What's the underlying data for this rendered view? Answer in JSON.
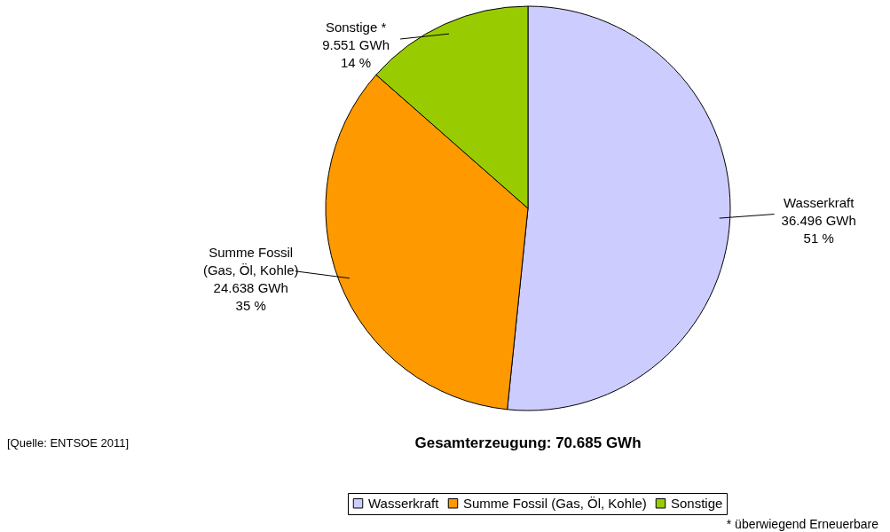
{
  "chart_data": {
    "type": "pie",
    "title": "Gesamterzeugung: 70.685 GWh",
    "categories": [
      "Wasserkraft",
      "Summe Fossil (Gas, Öl, Kohle)",
      "Sonstige"
    ],
    "values": [
      36496,
      24638,
      9551
    ],
    "colors": [
      "#ccccff",
      "#ff9900",
      "#99cc00"
    ],
    "value_labels": [
      "Wasserkraft\n36.496 GWh\n51 %",
      "Summe Fossil\n(Gas, Öl, Kohle)\n24.638 GWh\n35 %",
      "Sonstige *\n9.551 GWh\n14 %"
    ],
    "annotations": [
      "[Quelle: ENTSOE 2011]",
      "* überwiegend Erneuerbare"
    ],
    "legend": "bottom"
  }
}
